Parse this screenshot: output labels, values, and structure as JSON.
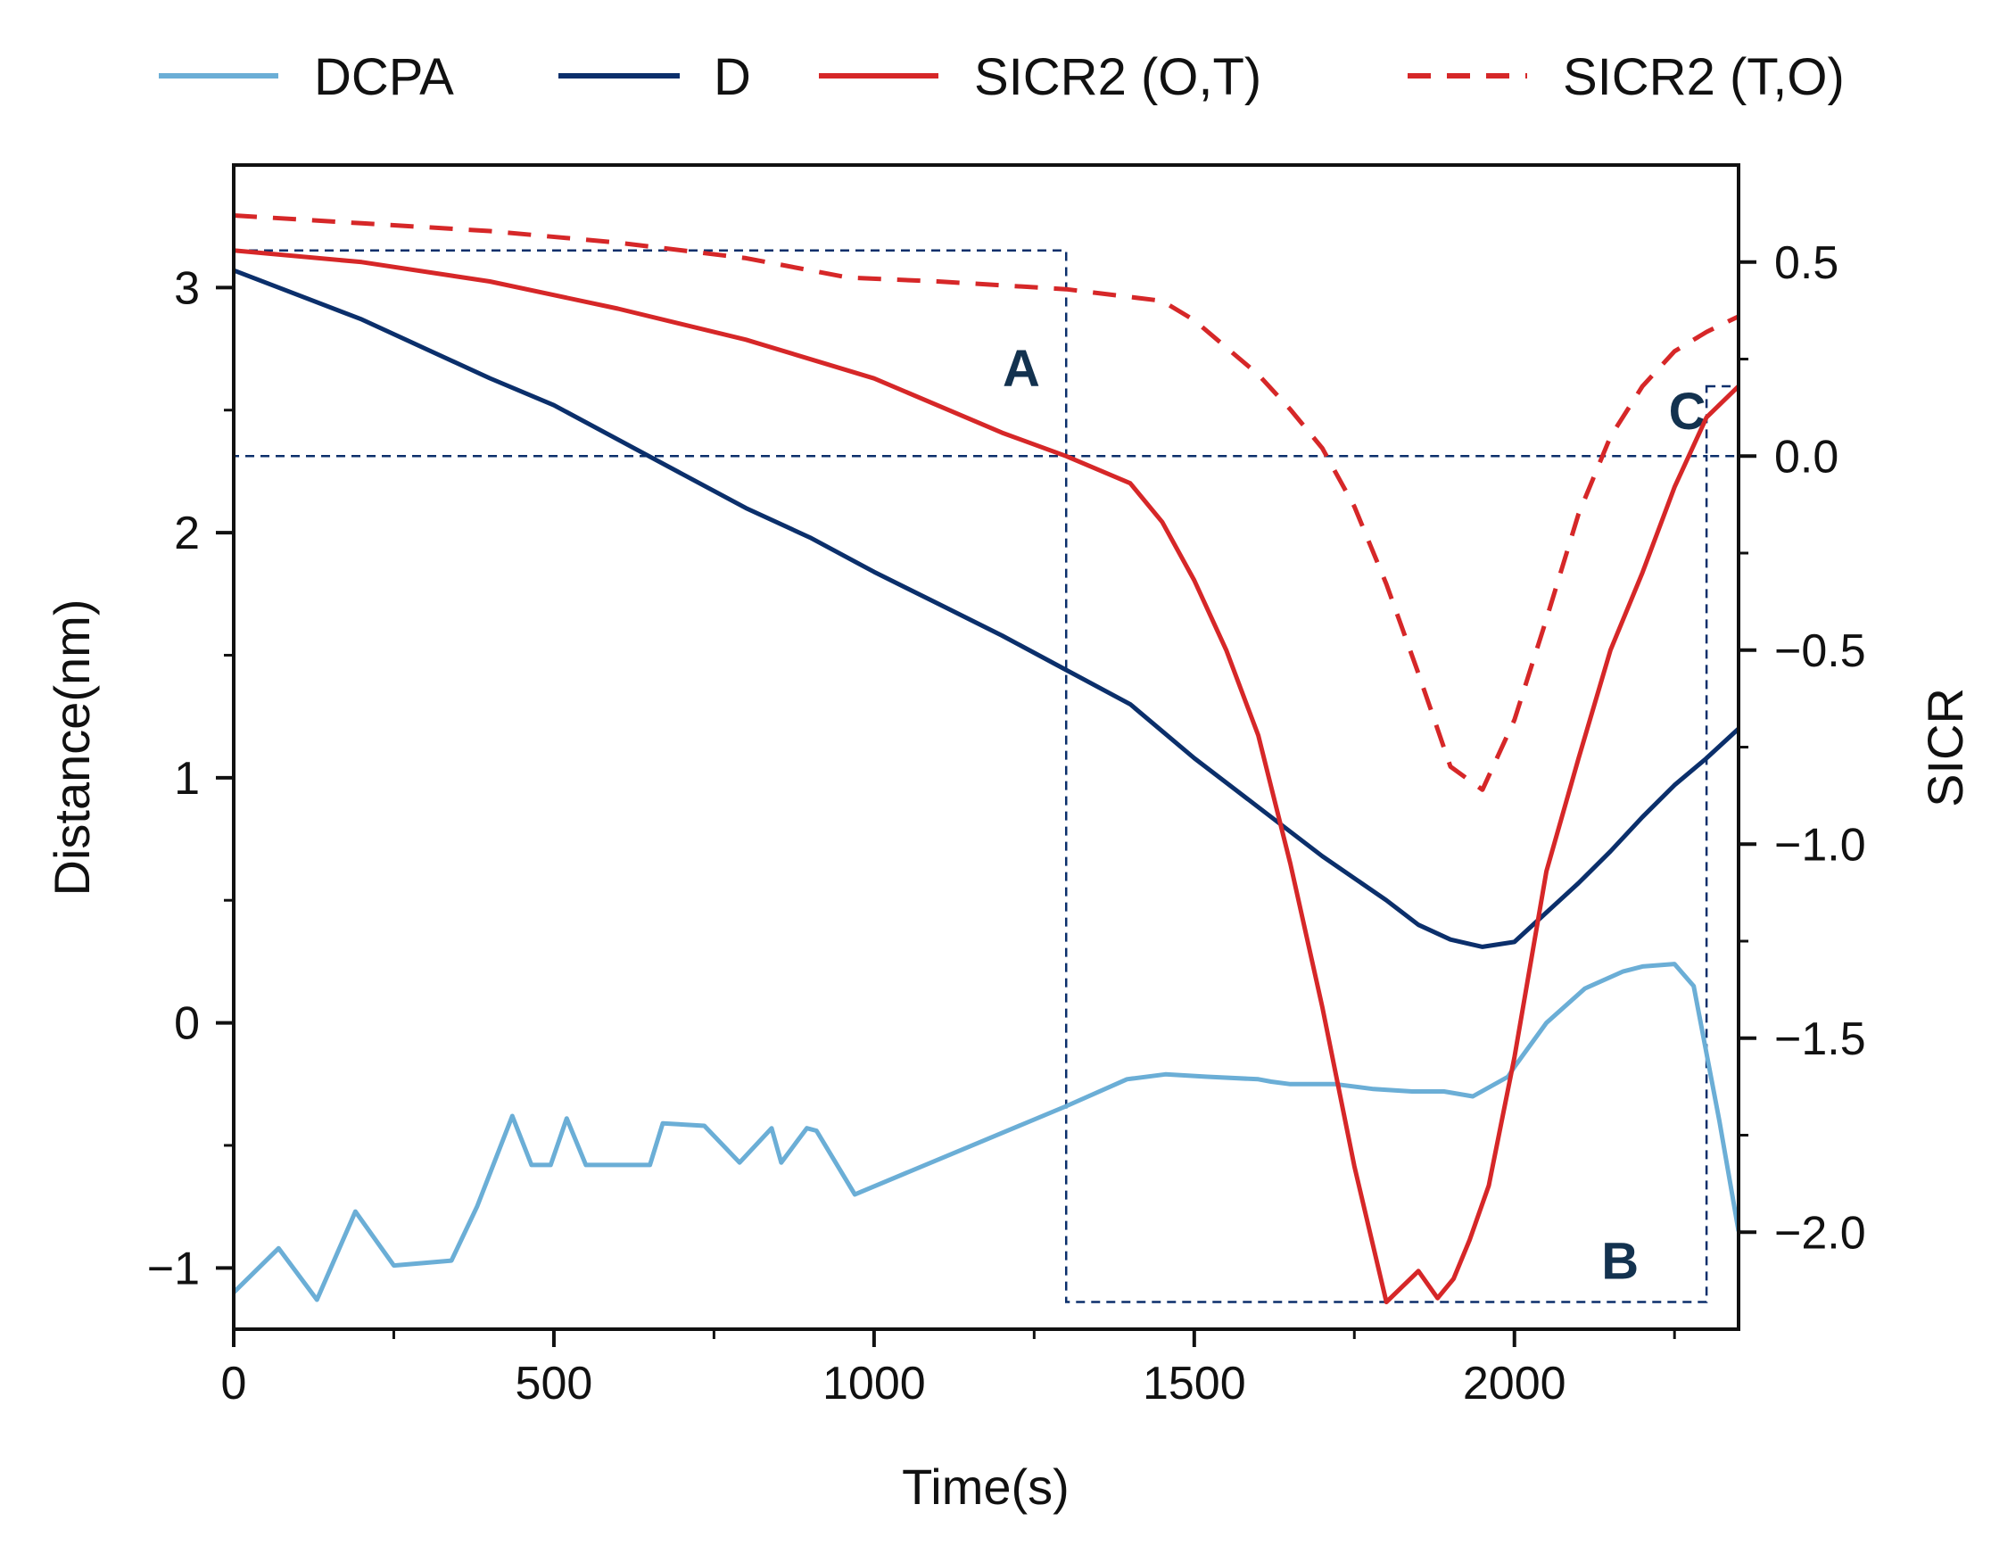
{
  "chart_data": {
    "type": "line",
    "title": "",
    "xlabel": "Time(s)",
    "ylabel": "Distance(nm)",
    "y2label": "SICR",
    "xlim": [
      0,
      2350
    ],
    "ylim": [
      -1.25,
      3.5
    ],
    "y2lim": [
      -2.25,
      0.75
    ],
    "x_ticks": [
      0,
      500,
      1000,
      1500,
      2000
    ],
    "y_ticks": [
      -1,
      0,
      1,
      2,
      3
    ],
    "y2_ticks": [
      0.5,
      0.0,
      -0.5,
      -1.0,
      -1.5,
      -2.0
    ],
    "x_tick_labels": [
      "0",
      "500",
      "1000",
      "1500",
      "2000"
    ],
    "y_tick_labels": [
      "−1",
      "0",
      "1",
      "2",
      "3"
    ],
    "y2_tick_labels": [
      "0.5",
      "0.0",
      "−0.5",
      "−1.0",
      "−1.5",
      "−2.0"
    ],
    "legend_position": "top",
    "series": [
      {
        "name": "DCPA",
        "axis": "left",
        "color": "#6baed6",
        "style": "solid",
        "x": [
          0,
          70,
          130,
          190,
          250,
          340,
          380,
          435,
          465,
          495,
          520,
          550,
          650,
          670,
          735,
          790,
          840,
          855,
          895,
          910,
          970,
          1300,
          1395,
          1455,
          1520,
          1600,
          1620,
          1650,
          1720,
          1780,
          1840,
          1870,
          1890,
          1935,
          1990,
          2000,
          2050,
          2110,
          2170,
          2200,
          2250,
          2280,
          2320,
          2350
        ],
        "y": [
          -1.1,
          -0.92,
          -1.13,
          -0.77,
          -0.99,
          -0.97,
          -0.75,
          -0.38,
          -0.58,
          -0.58,
          -0.39,
          -0.58,
          -0.58,
          -0.41,
          -0.42,
          -0.57,
          -0.43,
          -0.57,
          -0.43,
          -0.44,
          -0.7,
          -0.34,
          -0.23,
          -0.21,
          -0.22,
          -0.23,
          -0.24,
          -0.25,
          -0.25,
          -0.27,
          -0.28,
          -0.28,
          -0.28,
          -0.3,
          -0.22,
          -0.18,
          0.0,
          0.14,
          0.21,
          0.23,
          0.24,
          0.15,
          -0.4,
          -0.85
        ]
      },
      {
        "name": "D",
        "axis": "left",
        "color": "#0b2f6b",
        "style": "solid",
        "x": [
          0,
          100,
          200,
          300,
          400,
          500,
          600,
          700,
          800,
          900,
          1000,
          1100,
          1200,
          1300,
          1400,
          1500,
          1600,
          1700,
          1800,
          1850,
          1900,
          1950,
          2000,
          2050,
          2100,
          2150,
          2200,
          2250,
          2300,
          2350
        ],
        "y": [
          3.07,
          2.97,
          2.87,
          2.75,
          2.63,
          2.52,
          2.38,
          2.24,
          2.1,
          1.98,
          1.84,
          1.71,
          1.58,
          1.44,
          1.3,
          1.08,
          0.88,
          0.68,
          0.5,
          0.4,
          0.34,
          0.31,
          0.33,
          0.45,
          0.57,
          0.7,
          0.84,
          0.97,
          1.08,
          1.2
        ]
      },
      {
        "name": "SICR2 (O,T)",
        "axis": "right",
        "color": "#d62728",
        "style": "solid",
        "x": [
          0,
          200,
          400,
          600,
          800,
          1000,
          1200,
          1300,
          1400,
          1450,
          1500,
          1550,
          1600,
          1650,
          1700,
          1750,
          1800,
          1850,
          1880,
          1905,
          1930,
          1960,
          2000,
          2050,
          2100,
          2150,
          2200,
          2250,
          2300,
          2350
        ],
        "y": [
          0.53,
          0.5,
          0.45,
          0.38,
          0.3,
          0.2,
          0.06,
          0.0,
          -0.07,
          -0.17,
          -0.32,
          -0.5,
          -0.72,
          -1.05,
          -1.42,
          -1.83,
          -2.18,
          -2.1,
          -2.17,
          -2.12,
          -2.02,
          -1.88,
          -1.55,
          -1.07,
          -0.78,
          -0.5,
          -0.3,
          -0.08,
          0.1,
          0.18
        ]
      },
      {
        "name": "SICR2 (T,O)",
        "axis": "right",
        "color": "#d62728",
        "style": "dashed",
        "x": [
          0,
          200,
          400,
          600,
          800,
          960,
          1100,
          1300,
          1450,
          1500,
          1550,
          1600,
          1650,
          1700,
          1750,
          1800,
          1850,
          1900,
          1950,
          2000,
          2050,
          2100,
          2150,
          2200,
          2250,
          2300,
          2350
        ],
        "y": [
          0.62,
          0.6,
          0.58,
          0.55,
          0.51,
          0.46,
          0.45,
          0.43,
          0.4,
          0.35,
          0.28,
          0.21,
          0.12,
          0.02,
          -0.13,
          -0.33,
          -0.56,
          -0.8,
          -0.86,
          -0.68,
          -0.42,
          -0.15,
          0.05,
          0.18,
          0.27,
          0.32,
          0.36
        ]
      }
    ],
    "regions": [
      {
        "label": "A",
        "x": [
          0,
          1300
        ],
        "y2": [
          0.0,
          0.53
        ]
      },
      {
        "label": "B",
        "x": [
          1300,
          2300
        ],
        "y2": [
          -2.18,
          0.0
        ]
      },
      {
        "label": "C",
        "x": [
          2300,
          2350
        ],
        "y2": [
          0.0,
          0.18
        ]
      }
    ]
  }
}
